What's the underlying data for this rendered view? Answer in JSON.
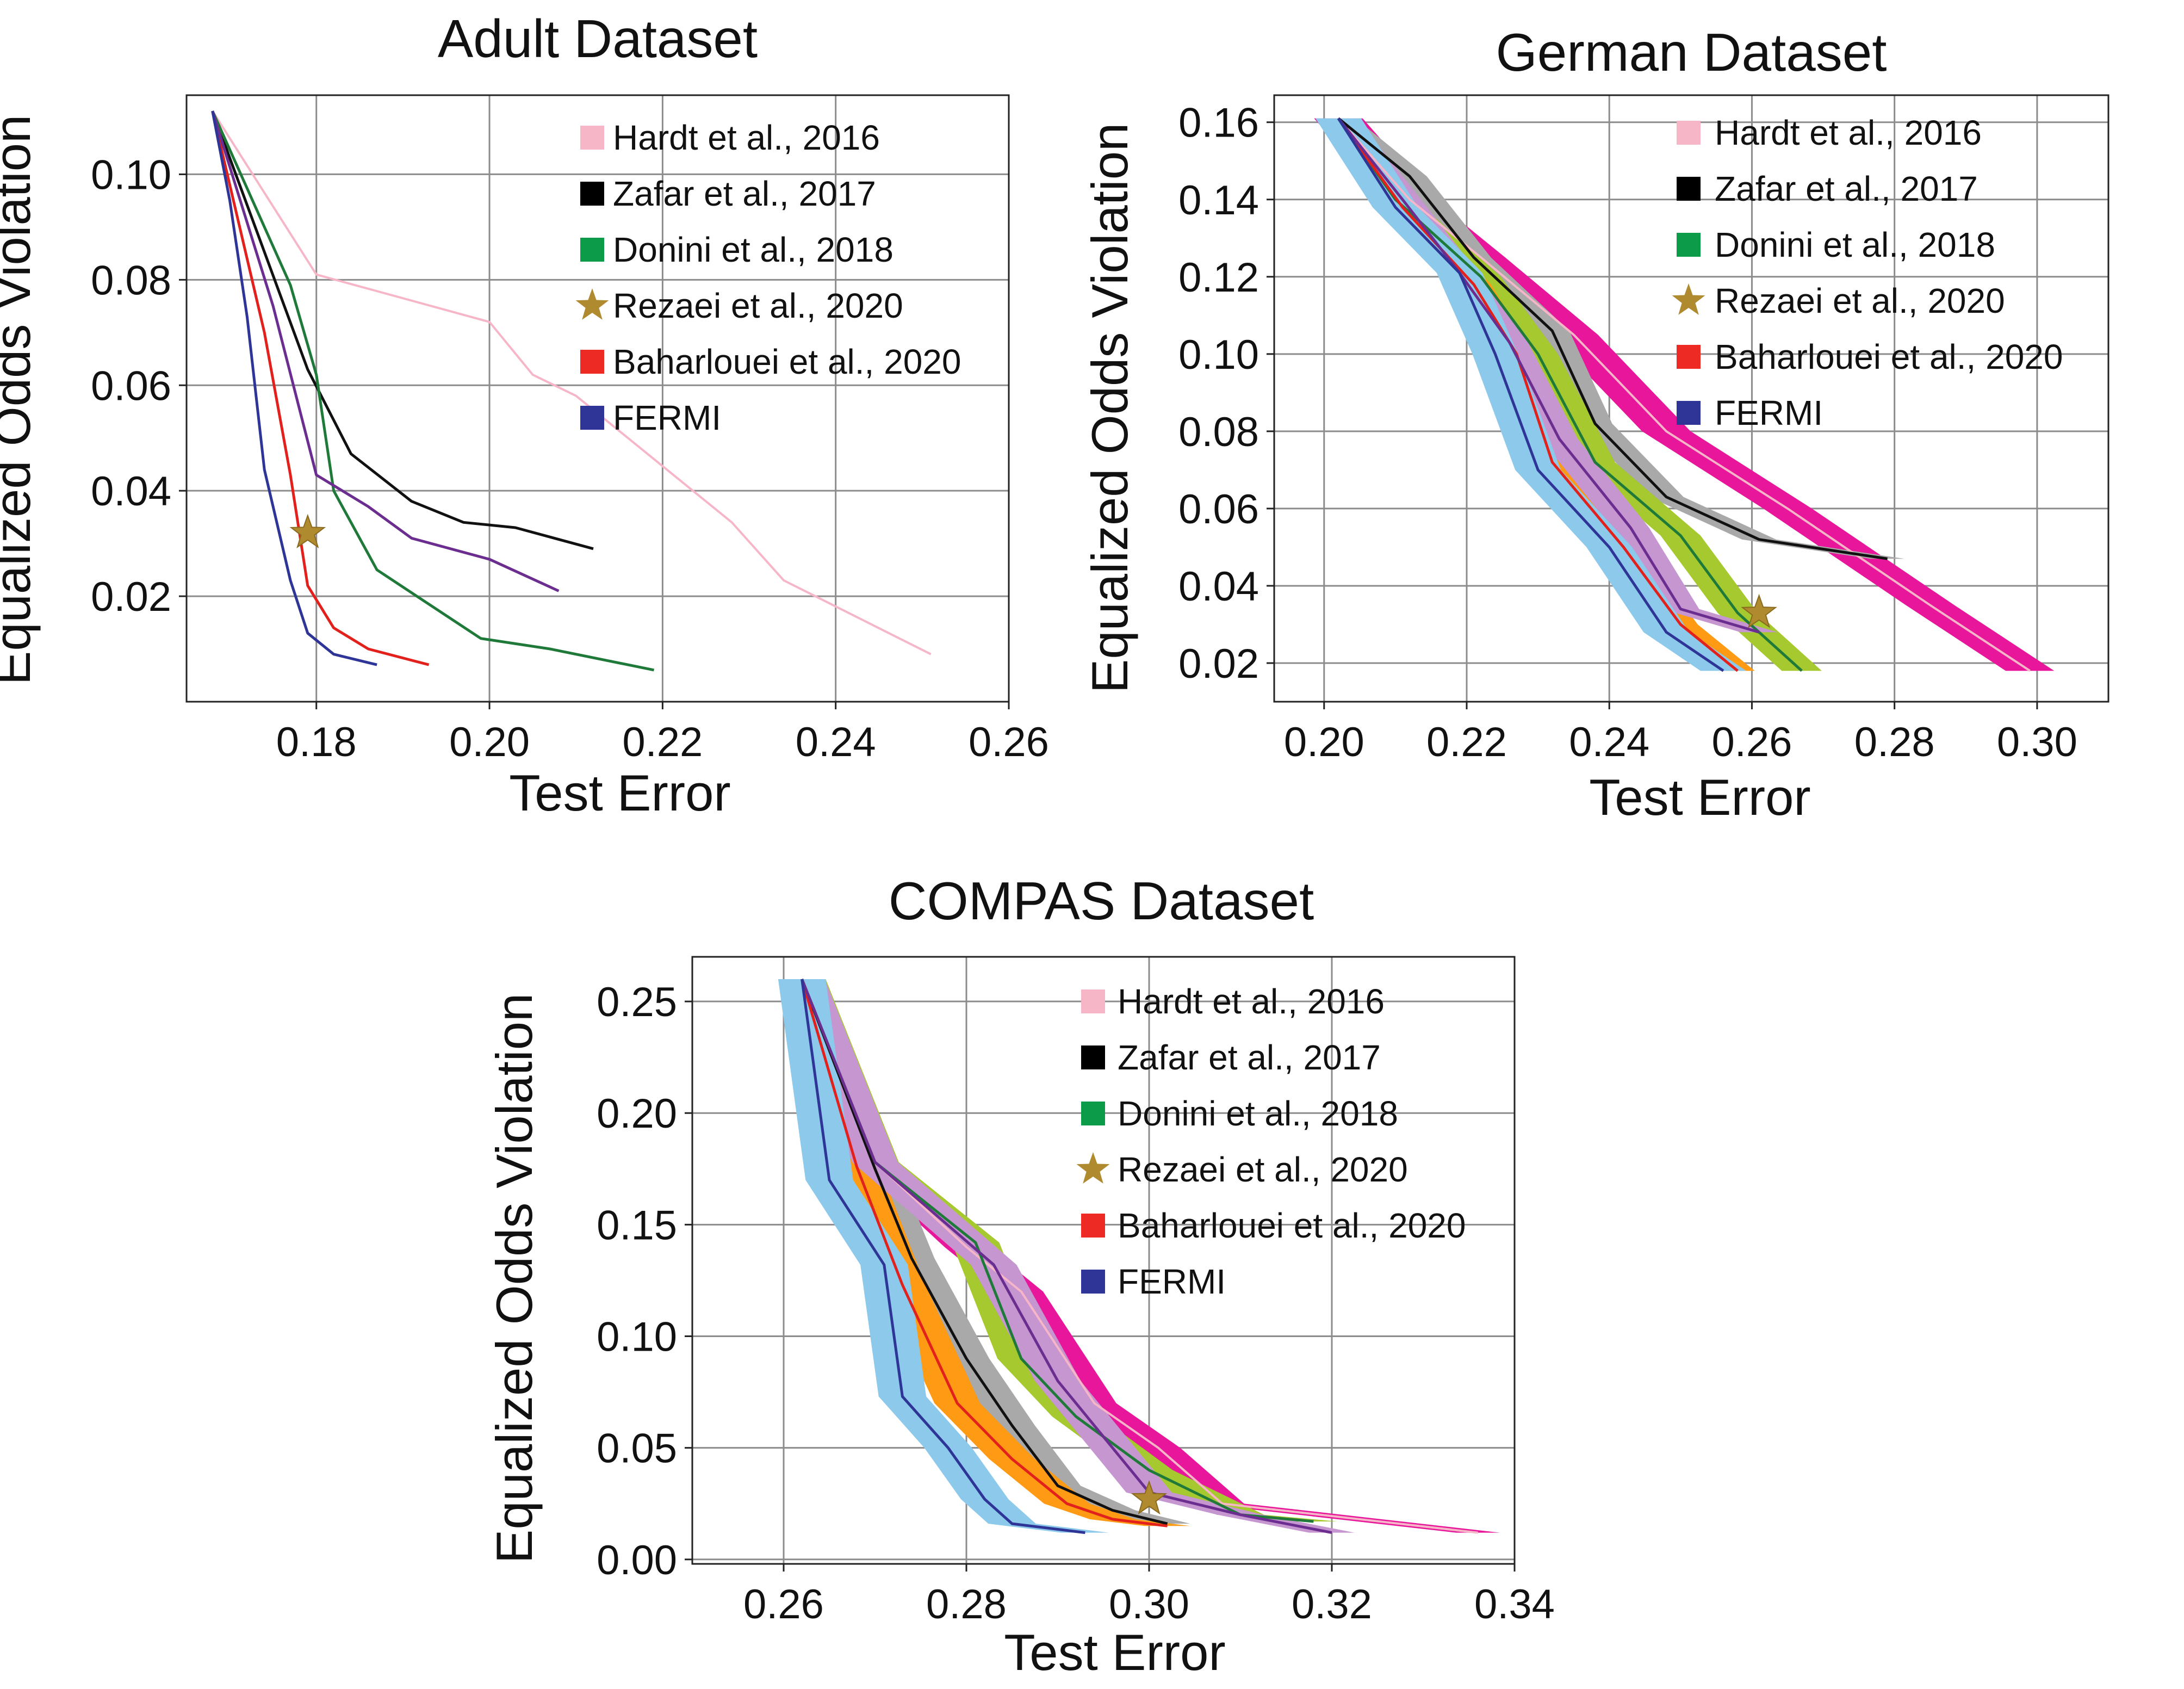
{
  "figure": {
    "panels": [
      "adult",
      "german",
      "compas"
    ]
  },
  "colors": {
    "hardt": "#f7b6c8",
    "zafar": "#111111",
    "donini": "#1f7a3a",
    "rezaei": "#b08a2e",
    "baharlouei": "#e3211c",
    "fermi": "#2e3596",
    "purple": "#6b2d8f",
    "legend_hardt": "#f7b6c8",
    "legend_zafar": "#000000",
    "legend_donini": "#0c9b48",
    "legend_rezaei": "#b08a2e",
    "legend_baharlouei": "#ee2a24",
    "legend_fermi": "#2e3596",
    "band_hardt": "#e8169a",
    "band_zafar": "#a9a9a9",
    "band_donini": "#a6c92f",
    "band_baharlouei": "#ff9a14",
    "band_fermi": "#8cc9ea",
    "band_purple": "#c596cf",
    "grid": "#8c8c8c"
  },
  "chart_data": [
    {
      "id": "adult",
      "type": "line",
      "title": "Adult Dataset",
      "xlabel": "Test Error",
      "ylabel": "Equalized Odds Violation",
      "xlim": [
        0.165,
        0.26
      ],
      "ylim": [
        0.0,
        0.115
      ],
      "xticks": [
        0.18,
        0.2,
        0.22,
        0.24,
        0.26
      ],
      "xtick_labels": [
        "0.18",
        "0.20",
        "0.22",
        "0.24",
        "0.26"
      ],
      "yticks": [
        0.02,
        0.04,
        0.06,
        0.08,
        0.1
      ],
      "ytick_labels": [
        "0.02",
        "0.04",
        "0.06",
        "0.08",
        "0.10"
      ],
      "grid": true,
      "legend_position": "top-right",
      "series": [
        {
          "name": "Hardt et al., 2016",
          "key": "hardt",
          "x": [
            0.168,
            0.18,
            0.2,
            0.205,
            0.21,
            0.228,
            0.234,
            0.251
          ],
          "y": [
            0.112,
            0.081,
            0.072,
            0.062,
            0.058,
            0.034,
            0.023,
            0.009
          ],
          "band": 0
        },
        {
          "name": "Zafar et al., 2017",
          "key": "zafar",
          "x": [
            0.168,
            0.179,
            0.184,
            0.191,
            0.197,
            0.203,
            0.212
          ],
          "y": [
            0.112,
            0.063,
            0.047,
            0.038,
            0.034,
            0.033,
            0.029
          ],
          "band": 0
        },
        {
          "name": "Donini et al., 2018",
          "key": "donini",
          "x": [
            0.168,
            0.177,
            0.18,
            0.182,
            0.187,
            0.199,
            0.207,
            0.219
          ],
          "y": [
            0.112,
            0.079,
            0.062,
            0.04,
            0.025,
            0.012,
            0.01,
            0.006
          ],
          "band": 0
        },
        {
          "name": "Baharlouei et al., 2020",
          "key": "baharlouei",
          "x": [
            0.168,
            0.174,
            0.177,
            0.179,
            0.182,
            0.186,
            0.193
          ],
          "y": [
            0.112,
            0.07,
            0.043,
            0.022,
            0.014,
            0.01,
            0.007
          ],
          "band": 0
        },
        {
          "name": "",
          "key": "purple",
          "x": [
            0.168,
            0.175,
            0.18,
            0.186,
            0.191,
            0.2,
            0.208
          ],
          "y": [
            0.112,
            0.075,
            0.043,
            0.037,
            0.031,
            0.027,
            0.021
          ],
          "band": 0
        },
        {
          "name": "FERMI",
          "key": "fermi",
          "x": [
            0.168,
            0.17,
            0.172,
            0.174,
            0.177,
            0.179,
            0.182,
            0.187
          ],
          "y": [
            0.112,
            0.095,
            0.073,
            0.044,
            0.023,
            0.013,
            0.009,
            0.007
          ],
          "band": 0
        }
      ],
      "markers": [
        {
          "name": "Rezaei et al., 2020",
          "key": "rezaei",
          "x": 0.179,
          "y": 0.032
        }
      ],
      "legend": [
        {
          "label": "Hardt et al., 2016",
          "key": "hardt",
          "kind": "square"
        },
        {
          "label": "Zafar et al., 2017",
          "key": "zafar",
          "kind": "square"
        },
        {
          "label": "Donini et al., 2018",
          "key": "donini",
          "kind": "square"
        },
        {
          "label": "Rezaei et al., 2020",
          "key": "rezaei",
          "kind": "star"
        },
        {
          "label": "Baharlouei et al., 2020",
          "key": "baharlouei",
          "kind": "square"
        },
        {
          "label": "FERMI",
          "key": "fermi",
          "kind": "square"
        }
      ]
    },
    {
      "id": "german",
      "type": "line",
      "title": "German Dataset",
      "xlabel": "Test Error",
      "ylabel": "Equalized Odds Violation",
      "xlim": [
        0.193,
        0.31
      ],
      "ylim": [
        0.01,
        0.167
      ],
      "xticks": [
        0.2,
        0.22,
        0.24,
        0.26,
        0.28,
        0.3
      ],
      "xtick_labels": [
        "0.20",
        "0.22",
        "0.24",
        "0.26",
        "0.28",
        "0.30"
      ],
      "yticks": [
        0.02,
        0.04,
        0.06,
        0.08,
        0.1,
        0.12,
        0.14,
        0.16
      ],
      "ytick_labels": [
        "0.02",
        "0.04",
        "0.06",
        "0.08",
        "0.10",
        "0.12",
        "0.14",
        "0.16"
      ],
      "grid": true,
      "legend_position": "top-right",
      "series": [
        {
          "name": "Hardt et al., 2016",
          "key": "hardt",
          "x": [
            0.202,
            0.212,
            0.222,
            0.235,
            0.248,
            0.265,
            0.285,
            0.299
          ],
          "y": [
            0.161,
            0.14,
            0.125,
            0.105,
            0.08,
            0.06,
            0.035,
            0.018
          ],
          "band": 0.0034
        },
        {
          "name": "Zafar et al., 2017",
          "key": "zafar",
          "x": [
            0.202,
            0.212,
            0.221,
            0.232,
            0.238,
            0.248,
            0.261,
            0.279
          ],
          "y": [
            0.161,
            0.146,
            0.125,
            0.106,
            0.082,
            0.063,
            0.052,
            0.047
          ],
          "band": 0.0024
        },
        {
          "name": "Donini et al., 2018",
          "key": "donini",
          "x": [
            0.202,
            0.21,
            0.222,
            0.23,
            0.238,
            0.25,
            0.258,
            0.267
          ],
          "y": [
            0.161,
            0.14,
            0.12,
            0.1,
            0.072,
            0.053,
            0.033,
            0.018
          ],
          "band": 0.0028
        },
        {
          "name": "Baharlouei et al., 2020",
          "key": "baharlouei",
          "x": [
            0.202,
            0.211,
            0.221,
            0.227,
            0.232,
            0.242,
            0.25,
            0.258
          ],
          "y": [
            0.161,
            0.138,
            0.118,
            0.1,
            0.072,
            0.05,
            0.03,
            0.018
          ],
          "band": 0.0024
        },
        {
          "name": "",
          "key": "purple",
          "x": [
            0.202,
            0.211,
            0.219,
            0.226,
            0.233,
            0.243,
            0.25,
            0.261
          ],
          "y": [
            0.161,
            0.14,
            0.121,
            0.103,
            0.078,
            0.055,
            0.034,
            0.028
          ],
          "band": 0.0026
        },
        {
          "name": "FERMI",
          "key": "fermi",
          "x": [
            0.202,
            0.21,
            0.219,
            0.224,
            0.23,
            0.24,
            0.248,
            0.256
          ],
          "y": [
            0.161,
            0.138,
            0.121,
            0.1,
            0.07,
            0.05,
            0.028,
            0.018
          ],
          "band": 0.0032
        }
      ],
      "markers": [
        {
          "name": "Rezaei et al., 2020",
          "key": "rezaei",
          "x": 0.261,
          "y": 0.033
        }
      ],
      "legend": [
        {
          "label": "Hardt et al., 2016",
          "key": "hardt",
          "kind": "square"
        },
        {
          "label": "Zafar et al., 2017",
          "key": "zafar",
          "kind": "square"
        },
        {
          "label": "Donini et al., 2018",
          "key": "donini",
          "kind": "square"
        },
        {
          "label": "Rezaei et al., 2020",
          "key": "rezaei",
          "kind": "star"
        },
        {
          "label": "Baharlouei et al., 2020",
          "key": "baharlouei",
          "kind": "square"
        },
        {
          "label": "FERMI",
          "key": "fermi",
          "kind": "square"
        }
      ]
    },
    {
      "id": "compas",
      "type": "line",
      "title": "COMPAS Dataset",
      "xlabel": "Test Error",
      "ylabel": "Equalized Odds Violation",
      "xlim": [
        0.25,
        0.34
      ],
      "ylim": [
        -0.002,
        0.27
      ],
      "xticks": [
        0.26,
        0.28,
        0.3,
        0.32,
        0.34
      ],
      "xtick_labels": [
        "0.26",
        "0.28",
        "0.30",
        "0.32",
        "0.34"
      ],
      "yticks": [
        0.0,
        0.05,
        0.1,
        0.15,
        0.2,
        0.25
      ],
      "ytick_labels": [
        "0.00",
        "0.05",
        "0.10",
        "0.15",
        "0.20",
        "0.25"
      ],
      "grid": true,
      "legend_position": "top-right",
      "series": [
        {
          "name": "Hardt et al., 2016",
          "key": "hardt",
          "x": [
            0.262,
            0.27,
            0.28,
            0.286,
            0.294,
            0.301,
            0.308,
            0.336
          ],
          "y": [
            0.26,
            0.178,
            0.14,
            0.12,
            0.07,
            0.05,
            0.025,
            0.012
          ],
          "band": 0.0024
        },
        {
          "name": "Zafar et al., 2017",
          "key": "zafar",
          "x": [
            0.262,
            0.27,
            0.274,
            0.28,
            0.285,
            0.29,
            0.296,
            0.302
          ],
          "y": [
            0.26,
            0.175,
            0.135,
            0.09,
            0.06,
            0.033,
            0.022,
            0.016
          ],
          "band": 0.0025
        },
        {
          "name": "Donini et al., 2018",
          "key": "donini",
          "x": [
            0.262,
            0.27,
            0.281,
            0.286,
            0.292,
            0.3,
            0.31,
            0.318
          ],
          "y": [
            0.26,
            0.178,
            0.142,
            0.09,
            0.064,
            0.04,
            0.02,
            0.017
          ],
          "band": 0.0026
        },
        {
          "name": "Baharlouei et al., 2020",
          "key": "baharlouei",
          "x": [
            0.262,
            0.268,
            0.273,
            0.279,
            0.285,
            0.291,
            0.296,
            0.302
          ],
          "y": [
            0.26,
            0.176,
            0.123,
            0.07,
            0.045,
            0.025,
            0.018,
            0.015
          ],
          "band": 0.0025
        },
        {
          "name": "",
          "key": "purple",
          "x": [
            0.262,
            0.27,
            0.283,
            0.29,
            0.3,
            0.31,
            0.32
          ],
          "y": [
            0.26,
            0.178,
            0.132,
            0.08,
            0.03,
            0.02,
            0.012
          ],
          "band": 0.0025
        },
        {
          "name": "FERMI",
          "key": "fermi",
          "x": [
            0.262,
            0.265,
            0.271,
            0.273,
            0.278,
            0.282,
            0.285,
            0.293
          ],
          "y": [
            0.26,
            0.17,
            0.132,
            0.073,
            0.05,
            0.027,
            0.016,
            0.012
          ],
          "band": 0.0026
        }
      ],
      "markers": [
        {
          "name": "Rezaei et al., 2020",
          "key": "rezaei",
          "x": 0.3,
          "y": 0.027
        }
      ],
      "legend": [
        {
          "label": "Hardt et al., 2016",
          "key": "hardt",
          "kind": "square"
        },
        {
          "label": "Zafar et al., 2017",
          "key": "zafar",
          "kind": "square"
        },
        {
          "label": "Donini et al., 2018",
          "key": "donini",
          "kind": "square"
        },
        {
          "label": "Rezaei et al., 2020",
          "key": "rezaei",
          "kind": "star"
        },
        {
          "label": "Baharlouei et al., 2020",
          "key": "baharlouei",
          "kind": "square"
        },
        {
          "label": "FERMI",
          "key": "fermi",
          "kind": "square"
        }
      ]
    }
  ]
}
